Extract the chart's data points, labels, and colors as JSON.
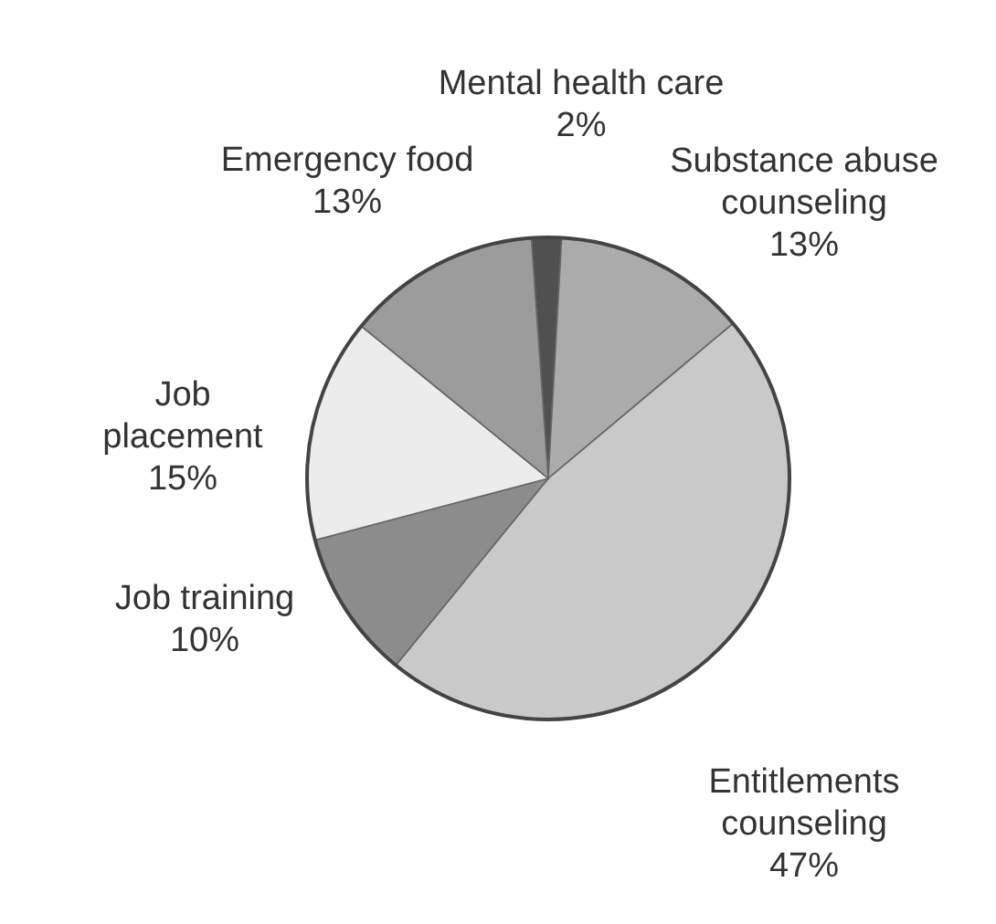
{
  "chart_data": {
    "type": "pie",
    "categories": [
      "Mental health care",
      "Substance abuse counseling",
      "Entitlements counseling",
      "Job training",
      "Job placement",
      "Emergency food"
    ],
    "values": [
      2,
      13,
      47,
      10,
      15,
      13
    ],
    "colors": [
      "#505050",
      "#ababab",
      "#c9c9c9",
      "#8c8c8c",
      "#ececec",
      "#9c9c9c"
    ],
    "value_labels": [
      "2%",
      "13%",
      "47%",
      "10%",
      "15%",
      "13%"
    ]
  }
}
